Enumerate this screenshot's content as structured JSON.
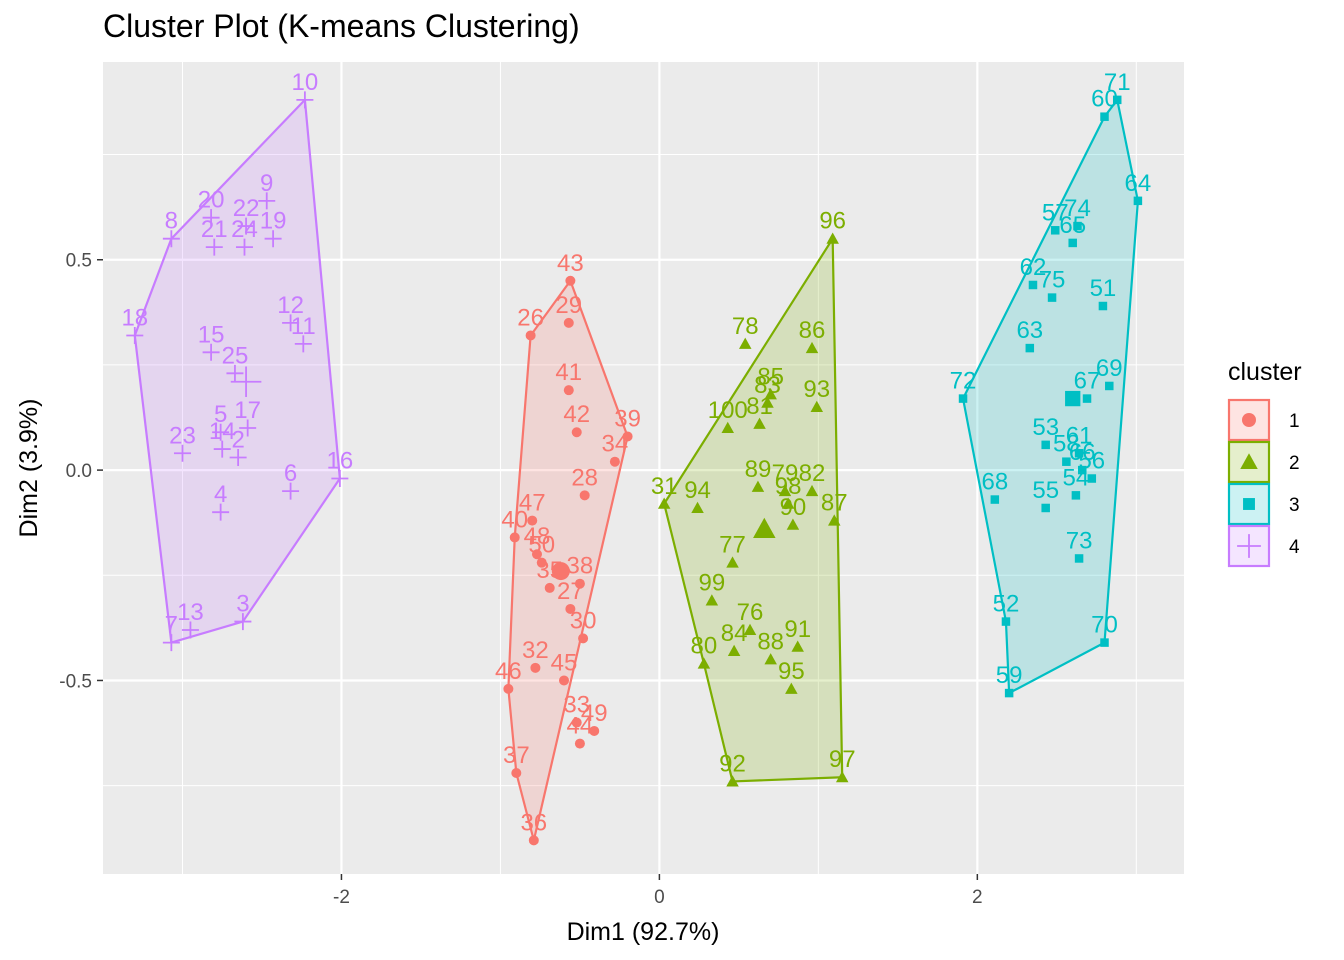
{
  "title": "Cluster Plot (K-means Clustering)",
  "chart_data": {
    "type": "scatter",
    "title": "Cluster Plot (K-means Clustering)",
    "xlabel": "Dim1 (92.7%)",
    "ylabel": "Dim2 (3.9%)",
    "xlim": [
      -3.5,
      3.3
    ],
    "ylim": [
      -0.96,
      0.97
    ],
    "x_ticks": [
      {
        "value": -2,
        "label": "-2"
      },
      {
        "value": 0,
        "label": "0"
      },
      {
        "value": 2,
        "label": "2"
      }
    ],
    "y_ticks": [
      {
        "value": -0.5,
        "label": "-0.5"
      },
      {
        "value": 0,
        "label": "0.0"
      },
      {
        "value": 0.5,
        "label": "0.5"
      }
    ],
    "grid": true,
    "legend": {
      "title": "cluster",
      "placement": "right"
    },
    "series": [
      {
        "name": "1",
        "color": "#F8766D",
        "shape": "circle",
        "centroid": [
          -0.62,
          -0.24
        ],
        "hull": [
          26,
          43,
          39,
          36,
          37,
          46,
          40
        ],
        "points": [
          {
            "id": 43,
            "x": -0.56,
            "y": 0.45
          },
          {
            "id": 26,
            "x": -0.81,
            "y": 0.32
          },
          {
            "id": 29,
            "x": -0.57,
            "y": 0.35
          },
          {
            "id": 41,
            "x": -0.57,
            "y": 0.19
          },
          {
            "id": 42,
            "x": -0.52,
            "y": 0.09
          },
          {
            "id": 39,
            "x": -0.2,
            "y": 0.08
          },
          {
            "id": 34,
            "x": -0.28,
            "y": 0.02
          },
          {
            "id": 28,
            "x": -0.47,
            "y": -0.06
          },
          {
            "id": 47,
            "x": -0.8,
            "y": -0.12
          },
          {
            "id": 40,
            "x": -0.91,
            "y": -0.16
          },
          {
            "id": 48,
            "x": -0.77,
            "y": -0.2
          },
          {
            "id": 50,
            "x": -0.74,
            "y": -0.22
          },
          {
            "id": 38,
            "x": -0.5,
            "y": -0.27
          },
          {
            "id": 35,
            "x": -0.69,
            "y": -0.28
          },
          {
            "id": 27,
            "x": -0.56,
            "y": -0.33
          },
          {
            "id": 30,
            "x": -0.48,
            "y": -0.4
          },
          {
            "id": 32,
            "x": -0.78,
            "y": -0.47
          },
          {
            "id": 45,
            "x": -0.6,
            "y": -0.5
          },
          {
            "id": 46,
            "x": -0.95,
            "y": -0.52
          },
          {
            "id": 33,
            "x": -0.52,
            "y": -0.6
          },
          {
            "id": 49,
            "x": -0.41,
            "y": -0.62
          },
          {
            "id": 44,
            "x": -0.5,
            "y": -0.65
          },
          {
            "id": 37,
            "x": -0.9,
            "y": -0.72
          },
          {
            "id": 36,
            "x": -0.79,
            "y": -0.88
          }
        ]
      },
      {
        "name": "2",
        "color": "#7CAE00",
        "shape": "triangle",
        "centroid": [
          0.66,
          -0.14
        ],
        "hull": [
          31,
          96,
          97,
          92,
          80
        ],
        "points": [
          {
            "id": 96,
            "x": 1.09,
            "y": 0.55
          },
          {
            "id": 78,
            "x": 0.54,
            "y": 0.3
          },
          {
            "id": 86,
            "x": 0.96,
            "y": 0.29
          },
          {
            "id": 85,
            "x": 0.7,
            "y": 0.18
          },
          {
            "id": 83,
            "x": 0.68,
            "y": 0.16
          },
          {
            "id": 93,
            "x": 0.99,
            "y": 0.15
          },
          {
            "id": 100,
            "x": 0.43,
            "y": 0.1
          },
          {
            "id": 81,
            "x": 0.63,
            "y": 0.11
          },
          {
            "id": 89,
            "x": 0.62,
            "y": -0.04
          },
          {
            "id": 79,
            "x": 0.79,
            "y": -0.05
          },
          {
            "id": 82,
            "x": 0.96,
            "y": -0.05
          },
          {
            "id": 98,
            "x": 0.81,
            "y": -0.08
          },
          {
            "id": 31,
            "x": 0.03,
            "y": -0.08
          },
          {
            "id": 94,
            "x": 0.24,
            "y": -0.09
          },
          {
            "id": 87,
            "x": 1.1,
            "y": -0.12
          },
          {
            "id": 90,
            "x": 0.84,
            "y": -0.13
          },
          {
            "id": 77,
            "x": 0.46,
            "y": -0.22
          },
          {
            "id": 99,
            "x": 0.33,
            "y": -0.31
          },
          {
            "id": 76,
            "x": 0.57,
            "y": -0.38
          },
          {
            "id": 91,
            "x": 0.87,
            "y": -0.42
          },
          {
            "id": 84,
            "x": 0.47,
            "y": -0.43
          },
          {
            "id": 88,
            "x": 0.7,
            "y": -0.45
          },
          {
            "id": 80,
            "x": 0.28,
            "y": -0.46
          },
          {
            "id": 95,
            "x": 0.83,
            "y": -0.52
          },
          {
            "id": 92,
            "x": 0.46,
            "y": -0.74
          },
          {
            "id": 97,
            "x": 1.15,
            "y": -0.73
          }
        ]
      },
      {
        "name": "3",
        "color": "#00BFC4",
        "shape": "square",
        "centroid": [
          2.6,
          0.17
        ],
        "hull": [
          72,
          60,
          71,
          64,
          70,
          59,
          52
        ],
        "points": [
          {
            "id": 71,
            "x": 2.88,
            "y": 0.88
          },
          {
            "id": 60,
            "x": 2.8,
            "y": 0.84
          },
          {
            "id": 64,
            "x": 3.01,
            "y": 0.64
          },
          {
            "id": 57,
            "x": 2.49,
            "y": 0.57
          },
          {
            "id": 74,
            "x": 2.63,
            "y": 0.58
          },
          {
            "id": 65,
            "x": 2.6,
            "y": 0.54
          },
          {
            "id": 62,
            "x": 2.35,
            "y": 0.44
          },
          {
            "id": 75,
            "x": 2.47,
            "y": 0.41
          },
          {
            "id": 51,
            "x": 2.79,
            "y": 0.39
          },
          {
            "id": 63,
            "x": 2.33,
            "y": 0.29
          },
          {
            "id": 72,
            "x": 1.91,
            "y": 0.17
          },
          {
            "id": 69,
            "x": 2.83,
            "y": 0.2
          },
          {
            "id": 67,
            "x": 2.69,
            "y": 0.17
          },
          {
            "id": 53,
            "x": 2.43,
            "y": 0.06
          },
          {
            "id": 61,
            "x": 2.64,
            "y": 0.04
          },
          {
            "id": 58,
            "x": 2.56,
            "y": 0.02
          },
          {
            "id": 66,
            "x": 2.66,
            "y": 0.0
          },
          {
            "id": 68,
            "x": 2.11,
            "y": -0.07
          },
          {
            "id": 55,
            "x": 2.43,
            "y": -0.09
          },
          {
            "id": 54,
            "x": 2.62,
            "y": -0.06
          },
          {
            "id": 56,
            "x": 2.72,
            "y": -0.02
          },
          {
            "id": 73,
            "x": 2.64,
            "y": -0.21
          },
          {
            "id": 52,
            "x": 2.18,
            "y": -0.36
          },
          {
            "id": 70,
            "x": 2.8,
            "y": -0.41
          },
          {
            "id": 59,
            "x": 2.2,
            "y": -0.53
          }
        ]
      },
      {
        "name": "4",
        "color": "#C77CFF",
        "shape": "plus",
        "centroid": [
          -2.6,
          0.21
        ],
        "hull": [
          8,
          10,
          16,
          3,
          7,
          18
        ],
        "points": [
          {
            "id": 10,
            "x": -2.23,
            "y": 0.88
          },
          {
            "id": 9,
            "x": -2.47,
            "y": 0.64
          },
          {
            "id": 20,
            "x": -2.82,
            "y": 0.6
          },
          {
            "id": 22,
            "x": -2.6,
            "y": 0.58
          },
          {
            "id": 19,
            "x": -2.43,
            "y": 0.55
          },
          {
            "id": 8,
            "x": -3.07,
            "y": 0.55
          },
          {
            "id": 21,
            "x": -2.8,
            "y": 0.53
          },
          {
            "id": 24,
            "x": -2.61,
            "y": 0.53
          },
          {
            "id": 18,
            "x": -3.3,
            "y": 0.32
          },
          {
            "id": 12,
            "x": -2.32,
            "y": 0.35
          },
          {
            "id": 11,
            "x": -2.24,
            "y": 0.3
          },
          {
            "id": 15,
            "x": -2.82,
            "y": 0.28
          },
          {
            "id": 25,
            "x": -2.67,
            "y": 0.23
          },
          {
            "id": 17,
            "x": -2.59,
            "y": 0.1
          },
          {
            "id": 5,
            "x": -2.76,
            "y": 0.09
          },
          {
            "id": 14,
            "x": -2.75,
            "y": 0.05
          },
          {
            "id": 23,
            "x": -3.0,
            "y": 0.04
          },
          {
            "id": 2,
            "x": -2.65,
            "y": 0.03
          },
          {
            "id": 6,
            "x": -2.32,
            "y": -0.05
          },
          {
            "id": 16,
            "x": -2.01,
            "y": -0.02
          },
          {
            "id": 4,
            "x": -2.76,
            "y": -0.1
          },
          {
            "id": 3,
            "x": -2.62,
            "y": -0.36
          },
          {
            "id": 13,
            "x": -2.95,
            "y": -0.38
          },
          {
            "id": 7,
            "x": -3.07,
            "y": -0.41
          }
        ]
      }
    ]
  }
}
